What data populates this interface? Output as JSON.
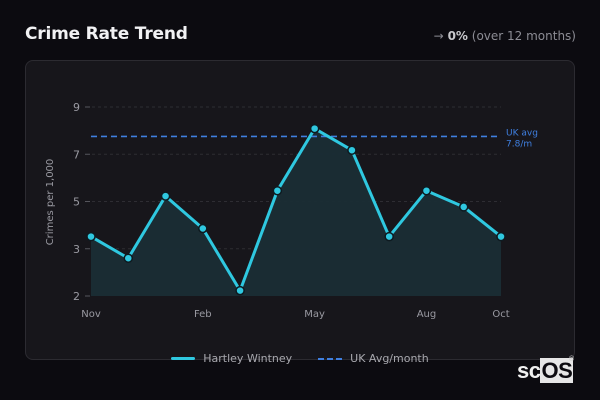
{
  "header": {
    "title": "Crime Rate Trend",
    "change_arrow": "→",
    "change_value": "0%",
    "change_period": "(over 12 months)"
  },
  "legend": {
    "series_label": "Hartley Wintney",
    "avg_label": "UK Avg/month"
  },
  "brand": {
    "prefix": "sc",
    "suffix": "OS",
    "mark": "®"
  },
  "colors": {
    "line": "#2fc8e0",
    "fill": "#1a2d35",
    "avg": "#3f7fe0",
    "grid": "#2e2d33",
    "tick": "#9a9aa2"
  },
  "chart_data": {
    "type": "area",
    "title": "Crime Rate Trend",
    "xlabel": "",
    "ylabel": "Crimes per 1,000",
    "x": [
      "Nov",
      "Dec",
      "Jan",
      "Feb",
      "Mar",
      "Apr",
      "May",
      "Jun",
      "Jul",
      "Aug",
      "Sep",
      "Oct"
    ],
    "x_tick_labels": [
      "Nov",
      "Feb",
      "May",
      "Aug",
      "Oct"
    ],
    "y_tick_labels": [
      "2",
      "3",
      "5",
      "7",
      "9"
    ],
    "ylim": [
      2,
      9
    ],
    "grid": true,
    "legend_position": "bottom",
    "series": [
      {
        "name": "Hartley Wintney",
        "values": [
          4.2,
          3.4,
          5.7,
          4.5,
          2.2,
          5.9,
          8.2,
          7.4,
          4.2,
          5.9,
          5.3,
          4.2
        ]
      }
    ],
    "reference_lines": [
      {
        "name": "UK Avg/month",
        "value": 7.8,
        "annotation": "UK avg",
        "annotation_value": "7.8/m",
        "style": "dashed"
      }
    ]
  }
}
